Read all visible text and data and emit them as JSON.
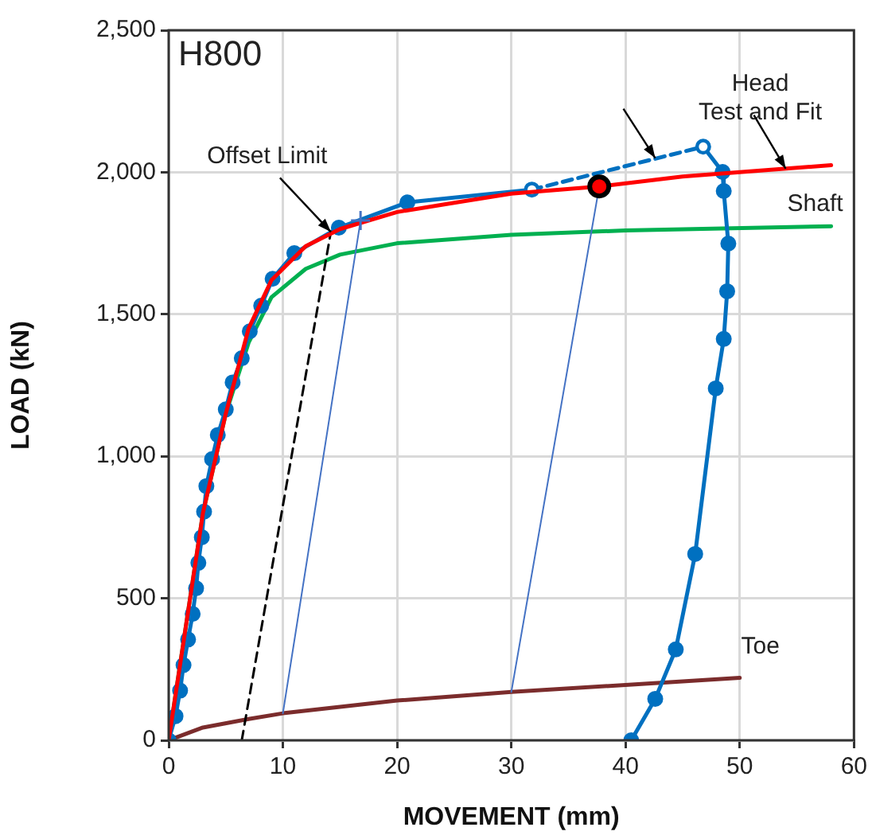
{
  "chart_data": {
    "type": "line",
    "title": "H800",
    "xlabel": "MOVEMENT (mm)",
    "ylabel": "LOAD (kN)",
    "xlim": [
      0,
      60
    ],
    "xticks": [
      0,
      10,
      20,
      30,
      40,
      50,
      60
    ],
    "ylim": [
      0,
      2500
    ],
    "yticks": [
      {
        "value": 0,
        "label": "0"
      },
      {
        "value": 500,
        "label": "500"
      },
      {
        "value": 1000,
        "label": "1,000"
      },
      {
        "value": 1500,
        "label": "1,500"
      },
      {
        "value": 2000,
        "label": "2,000"
      },
      {
        "value": 2500,
        "label": "2,500"
      }
    ],
    "grid": true,
    "legend": false,
    "annotations": [
      {
        "text": "Offset Limit",
        "x": 14.2,
        "y": 1790
      },
      {
        "text": "Head\nTest and Fit",
        "x": 42.6,
        "y": 2050
      },
      {
        "text": "Shaft",
        "x": 58,
        "y": 1810
      },
      {
        "text": "Toe",
        "x": 50,
        "y": 220
      }
    ],
    "series": [
      {
        "color": "#ff0000",
        "marker": "none",
        "line_style": "solid",
        "x": [
          0,
          3,
          5,
          7,
          9,
          12,
          15,
          20,
          30,
          37.7,
          45,
          58
        ],
        "values": [
          0,
          800,
          1150,
          1450,
          1620,
          1740,
          1800,
          1860,
          1925,
          1950,
          1985,
          2025
        ]
      },
      {
        "color": "#00b050",
        "marker": "none",
        "line_style": "solid",
        "x": [
          0,
          3,
          5,
          7,
          9,
          12,
          15,
          20,
          30,
          40,
          58
        ],
        "values": [
          0,
          800,
          1150,
          1400,
          1560,
          1660,
          1710,
          1750,
          1780,
          1795,
          1810
        ]
      },
      {
        "color": "#7b2c2c",
        "marker": "none",
        "line_style": "solid",
        "x": [
          0,
          3,
          7,
          10,
          20,
          30,
          40,
          50
        ],
        "values": [
          0,
          45,
          75,
          95,
          140,
          170,
          195,
          220
        ]
      },
      {
        "color": "#000000",
        "marker": "none",
        "line_style": "dashed",
        "x": [
          6.4,
          14.2
        ],
        "values": [
          0,
          1790
        ]
      },
      {
        "color": "#4472c4",
        "marker": "none",
        "line_style": "solid",
        "x": [
          10,
          16.8
        ],
        "values": [
          95,
          1830
        ]
      },
      {
        "color": "#4472c4",
        "marker": "none",
        "line_style": "solid",
        "x": [
          30,
          37.7
        ],
        "values": [
          170,
          1950
        ]
      },
      {
        "color": "#0070c0",
        "marker": "circle",
        "line_style": "solid",
        "x": [
          0,
          0.6,
          1.0,
          1.3,
          1.7,
          2.1,
          2.4,
          2.6,
          2.9,
          3.1,
          3.3,
          3.8,
          4.3,
          5.0,
          5.6,
          6.4,
          7.1,
          8.1,
          9.1,
          11.0,
          14.9,
          20.9,
          31.8
        ],
        "values": [
          0,
          85,
          175,
          265,
          355,
          445,
          535,
          625,
          715,
          805,
          895,
          990,
          1075,
          1165,
          1260,
          1345,
          1440,
          1530,
          1625,
          1715,
          1805,
          1894,
          1939
        ]
      },
      {
        "color": "#0070c0",
        "marker": "circle",
        "line_style": "dashed",
        "x": [
          31.8,
          46.8
        ],
        "values": [
          1939,
          2090
        ]
      },
      {
        "color": "#0070c0",
        "marker": "circle",
        "line_style": "solid",
        "x": [
          46.8,
          48.5,
          48.6,
          49.0,
          48.9,
          48.6,
          47.9,
          46.1,
          44.4,
          42.6,
          40.5
        ],
        "values": [
          2090,
          2001,
          1934,
          1749,
          1581,
          1413,
          1239,
          656,
          320,
          146,
          0
        ]
      },
      {
        "type": "scatter",
        "color": "#4472c4",
        "marker": "cross",
        "x": [
          16.8
        ],
        "values": [
          1830
        ]
      },
      {
        "type": "scatter",
        "color": "#ff0000",
        "marker": "circle",
        "x": [
          37.7
        ],
        "values": [
          1950
        ]
      }
    ]
  }
}
